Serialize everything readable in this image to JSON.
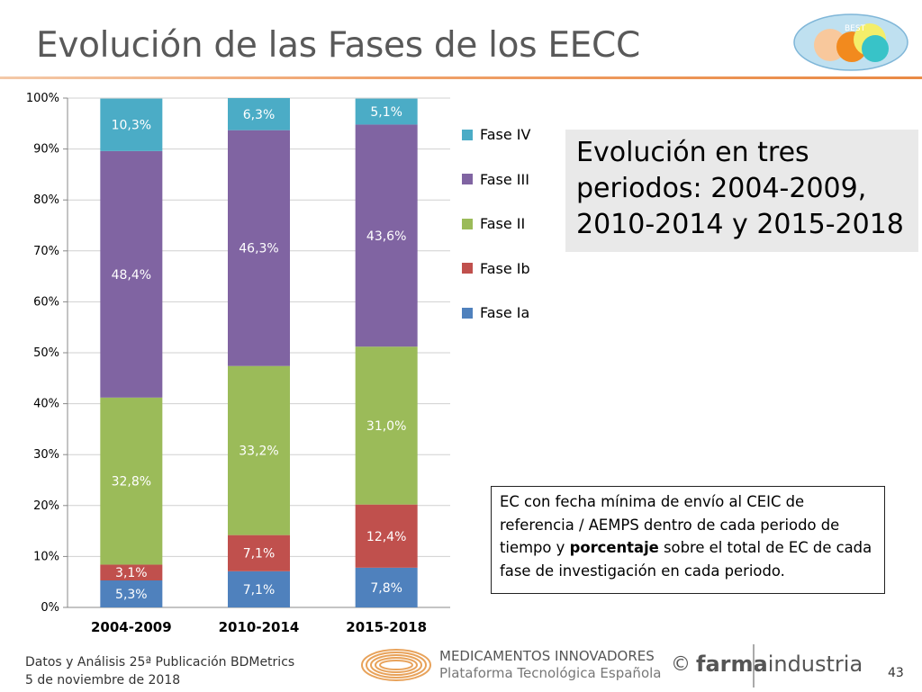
{
  "header": {
    "title": "Evolución de las Fases de los EECC",
    "logo_text": "BEST"
  },
  "callout": {
    "lines": [
      "Evolución en tres",
      "periodos: 2004-2009,",
      "2010-2014 y 2015-2018"
    ]
  },
  "note": {
    "text_before": "EC con fecha mínima de envío al CEIC de referencia / AEMPS dentro de cada periodo de tiempo y ",
    "bold": "porcentaje",
    "text_after": " sobre el total de EC de cada fase de investigación en cada periodo."
  },
  "footer": {
    "source_line1": "Datos y Análisis 25ª Publicación BDMetrics",
    "source_line2": "5 de noviembre de 2018",
    "med_line1": "MEDICAMENTOS INNOVADORES",
    "med_line2": "Plataforma Tecnológica Española",
    "copyright": "©",
    "brand_bold": "farma",
    "brand_light": "industria",
    "page_number": "43"
  },
  "colors": {
    "fase_ia": "#4f81bd",
    "fase_ib": "#c0504d",
    "fase_ii": "#9bbb59",
    "fase_iii": "#8064a2",
    "fase_iv": "#4bacc6"
  },
  "chart_data": {
    "type": "bar",
    "stacked": true,
    "categories": [
      "2004-2009",
      "2010-2014",
      "2015-2018"
    ],
    "series": [
      {
        "name": "Fase Ia",
        "color": "#4f81bd",
        "values": [
          5.3,
          7.1,
          7.8
        ],
        "labels": [
          "5,3%",
          "7,1%",
          "7,8%"
        ]
      },
      {
        "name": "Fase Ib",
        "color": "#c0504d",
        "values": [
          3.1,
          7.1,
          12.4
        ],
        "labels": [
          "3,1%",
          "7,1%",
          "12,4%"
        ]
      },
      {
        "name": "Fase II",
        "color": "#9bbb59",
        "values": [
          32.8,
          33.2,
          31.0
        ],
        "labels": [
          "32,8%",
          "33,2%",
          "31,0%"
        ]
      },
      {
        "name": "Fase III",
        "color": "#8064a2",
        "values": [
          48.4,
          46.3,
          43.6
        ],
        "labels": [
          "48,4%",
          "46,3%",
          "43,6%"
        ]
      },
      {
        "name": "Fase IV",
        "color": "#4bacc6",
        "values": [
          10.3,
          6.3,
          5.1
        ],
        "labels": [
          "10,3%",
          "6,3%",
          "5,1%"
        ]
      }
    ],
    "ylim": [
      0,
      100
    ],
    "yticks": [
      "0%",
      "10%",
      "20%",
      "30%",
      "40%",
      "50%",
      "60%",
      "70%",
      "80%",
      "90%",
      "100%"
    ],
    "grid": true,
    "legend": "right",
    "legend_order": [
      "Fase IV",
      "Fase III",
      "Fase II",
      "Fase Ib",
      "Fase Ia"
    ]
  }
}
